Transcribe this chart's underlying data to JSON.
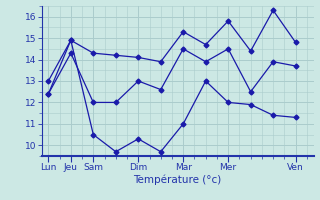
{
  "xlabel": "Température (°c)",
  "background_color": "#cce8e4",
  "grid_color": "#aacccc",
  "line_color": "#1a1aaa",
  "x_tick_labels": [
    "Lun",
    "Jeu",
    "Sam",
    "Dim",
    "Mar",
    "Mer",
    "Ven"
  ],
  "x_tick_positions": [
    0,
    1,
    2,
    4,
    6,
    8,
    11
  ],
  "ylim": [
    9.5,
    16.5
  ],
  "xlim": [
    -0.3,
    11.8
  ],
  "yticks": [
    10,
    11,
    12,
    13,
    14,
    15,
    16
  ],
  "series1_x": [
    0,
    1,
    2,
    3,
    4,
    5,
    6,
    7,
    8,
    9,
    10,
    11
  ],
  "series1_y": [
    12.4,
    14.3,
    12.0,
    12.0,
    13.0,
    12.6,
    14.5,
    13.9,
    14.5,
    12.5,
    13.9,
    13.7
  ],
  "series2_x": [
    0,
    1,
    2,
    3,
    4,
    5,
    6,
    7,
    8,
    9,
    10,
    11
  ],
  "series2_y": [
    13.0,
    14.9,
    14.3,
    14.2,
    14.1,
    13.9,
    15.3,
    14.7,
    15.8,
    14.4,
    16.3,
    14.8
  ],
  "series3_x": [
    0,
    1,
    2,
    3,
    4,
    5,
    6,
    7,
    8,
    9,
    10,
    11
  ],
  "series3_y": [
    12.4,
    14.9,
    10.5,
    9.7,
    10.3,
    9.7,
    11.0,
    13.0,
    12.0,
    11.9,
    11.4,
    11.3
  ],
  "marker": "D",
  "markersize": 2.5,
  "linewidth": 0.9,
  "tick_color": "#2233aa",
  "label_fontsize": 6.5,
  "xlabel_fontsize": 7.5
}
